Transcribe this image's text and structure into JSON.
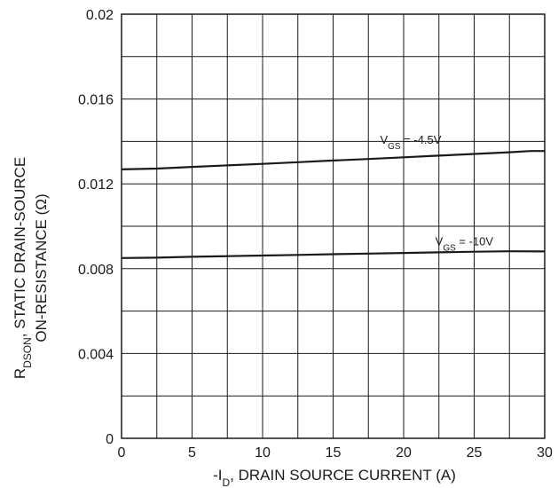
{
  "chart_data": {
    "type": "line",
    "title": "",
    "xlabel": {
      "prefix": "-I",
      "sub": "D",
      "suffix": ", DRAIN SOURCE CURRENT (A)"
    },
    "ylabel": {
      "line1_prefix": "R",
      "line1_sub": "DSON",
      "line1_suffix": ", STATIC DRAIN-SOURCE",
      "line2": "ON-RESISTANCE (Ω)"
    },
    "xlim": [
      0,
      30
    ],
    "ylim": [
      0,
      0.02
    ],
    "x_ticks": [
      0,
      5,
      10,
      15,
      20,
      25,
      30
    ],
    "x_tick_labels": [
      "0",
      "5",
      "10",
      "15",
      "20",
      "25",
      "30"
    ],
    "y_ticks": [
      0,
      0.004,
      0.008,
      0.012,
      0.016,
      0.02
    ],
    "y_tick_labels": [
      "0",
      "0.004",
      "0.008",
      "0.012",
      "0.016",
      "0.02"
    ],
    "x_grid_step": 2.5,
    "y_grid_step": 0.002,
    "grid": true,
    "series": [
      {
        "annotation": {
          "prefix": "V",
          "sub": "GS",
          "suffix": " = -4.5V",
          "at": [
            20.5,
            0.0139
          ]
        },
        "x": [
          0,
          2.5,
          5,
          7.5,
          10,
          12.5,
          15,
          17.5,
          20,
          22.5,
          25,
          27.5,
          29,
          30
        ],
        "y": [
          0.01268,
          0.01272,
          0.0128,
          0.01287,
          0.01294,
          0.01302,
          0.0131,
          0.01317,
          0.01325,
          0.01333,
          0.01341,
          0.01349,
          0.01355,
          0.01355
        ]
      },
      {
        "annotation": {
          "prefix": "V",
          "sub": "GS",
          "suffix": " = -10V",
          "at": [
            24.3,
            0.0091
          ]
        },
        "x": [
          0,
          2.5,
          5,
          7.5,
          10,
          12.5,
          15,
          17.5,
          20,
          22.5,
          25,
          27.5,
          30
        ],
        "y": [
          0.0085,
          0.00852,
          0.00856,
          0.00859,
          0.00862,
          0.00865,
          0.00868,
          0.00871,
          0.00874,
          0.00877,
          0.0088,
          0.00882,
          0.00881
        ]
      }
    ]
  }
}
